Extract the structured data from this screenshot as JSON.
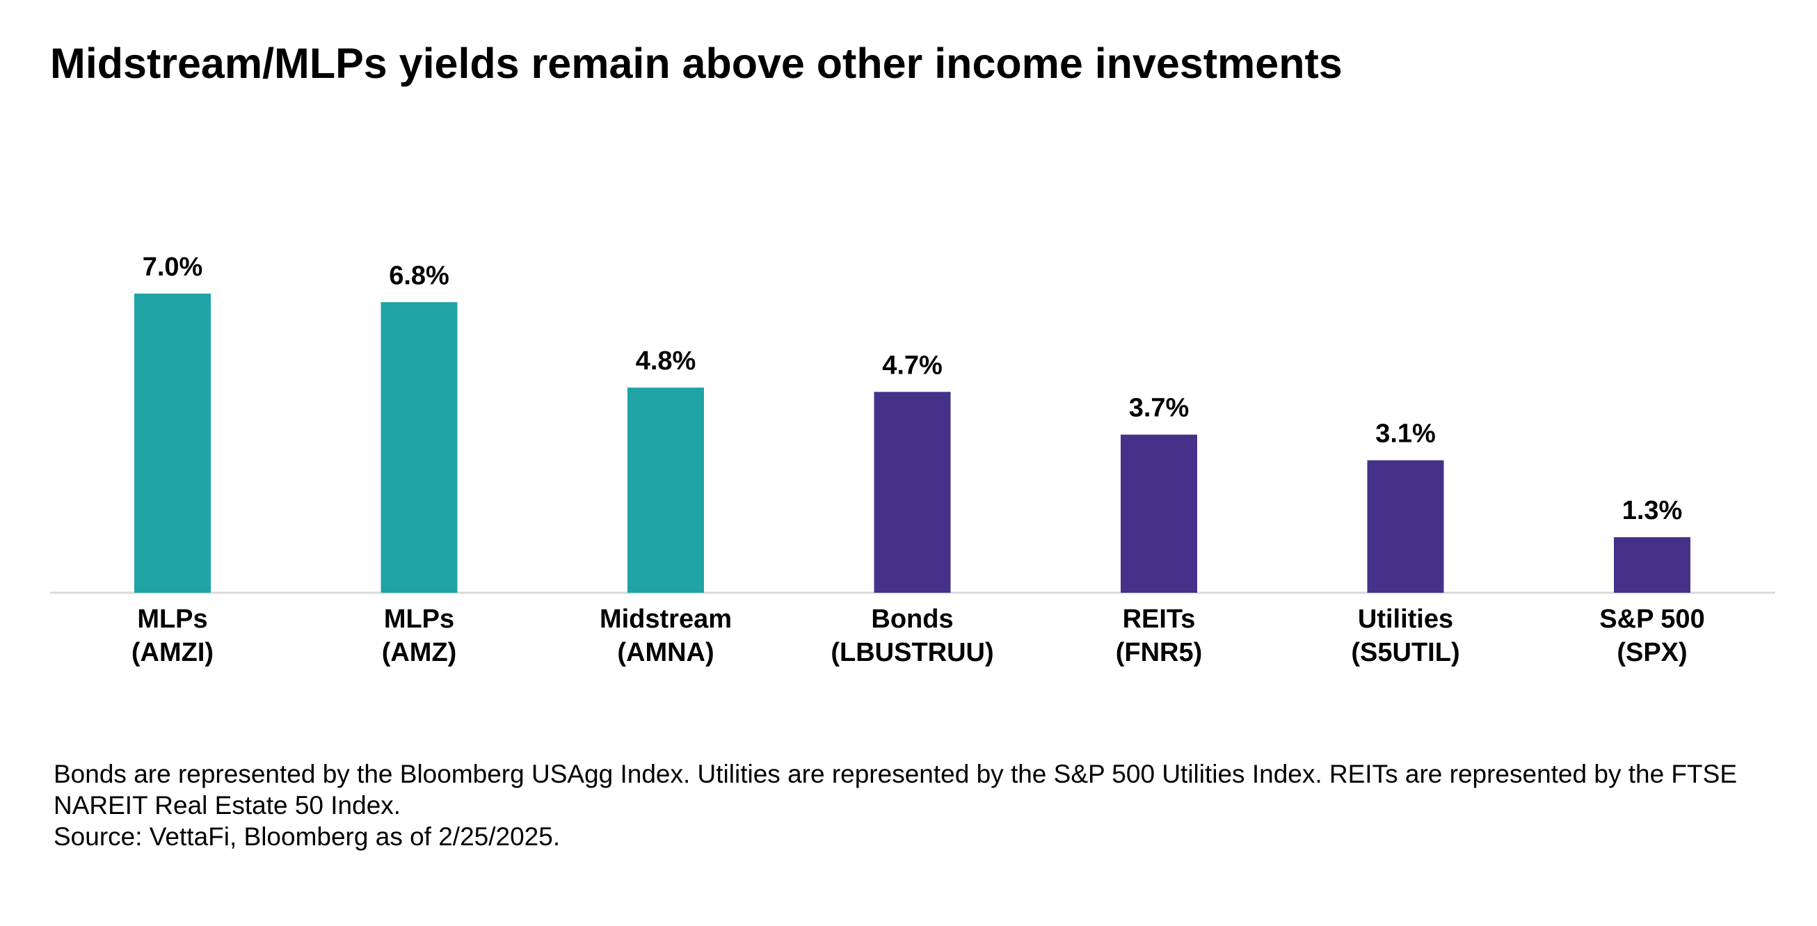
{
  "title": "Midstream/MLPs yields remain above other income investments",
  "colors": {
    "midstream": "#1fa3a5",
    "other": "#45318a",
    "axis": "#d9d9d9",
    "text": "#000000"
  },
  "chart_data": {
    "type": "bar",
    "title": "Midstream/MLPs yields remain above other income investments",
    "xlabel": "",
    "ylabel": "",
    "ylim": [
      0,
      7.0
    ],
    "grid": false,
    "legend": "none",
    "categories": [
      [
        "MLPs",
        "(AMZI)"
      ],
      [
        "MLPs",
        "(AMZ)"
      ],
      [
        "Midstream",
        "(AMNA)"
      ],
      [
        "Bonds",
        "(LBUSTRUU)"
      ],
      [
        "REITs",
        "(FNR5)"
      ],
      [
        "Utilities",
        "(S5UTIL)"
      ],
      [
        "S&P 500",
        "(SPX)"
      ]
    ],
    "values": [
      7.0,
      6.8,
      4.8,
      4.7,
      3.7,
      3.1,
      1.3
    ],
    "value_labels": [
      "7.0%",
      "6.8%",
      "4.8%",
      "4.7%",
      "3.7%",
      "3.1%",
      "1.3%"
    ],
    "bar_colors": [
      "#1fa3a5",
      "#1fa3a5",
      "#1fa3a5",
      "#45318a",
      "#45318a",
      "#45318a",
      "#45318a"
    ]
  },
  "footnote": {
    "line1": "Bonds are represented by the Bloomberg USAgg Index. Utilities are represented by the S&P 500 Utilities Index. REITs are represented by the FTSE NAREIT Real Estate 50 Index.",
    "line2": "Source: VettaFi, Bloomberg as of 2/25/2025."
  }
}
